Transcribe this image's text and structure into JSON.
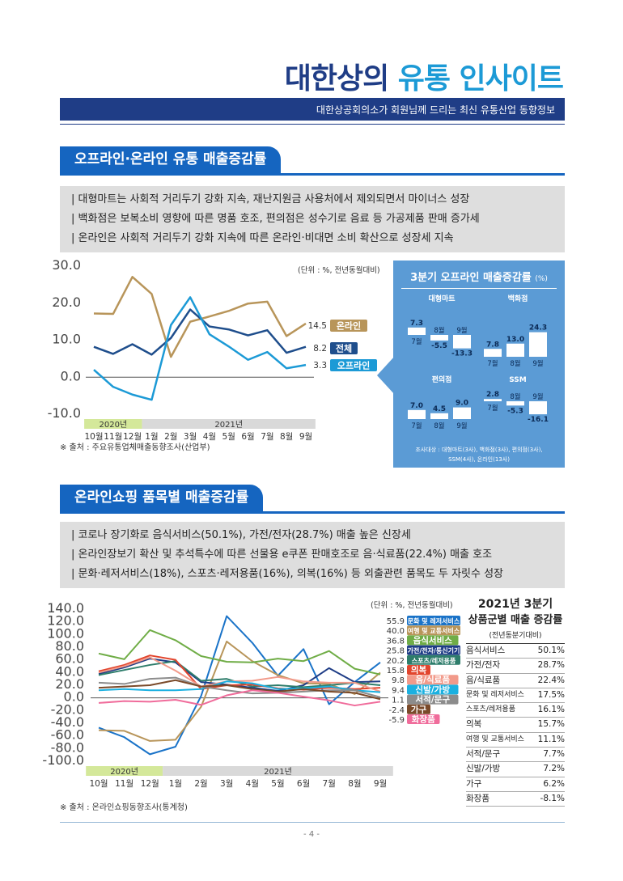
{
  "header": {
    "title_main": "대한상의 ",
    "title_accent": "유통 인사이트",
    "subtitle": "대한상공회의소가 회원님께 드리는 최신 유통산업 동향정보"
  },
  "section1": {
    "title": "오프라인·온라인 유통 매출증감률",
    "bullets": [
      "| 대형마트는 사회적 거리두기 강화 지속, 재난지원금 사용처에서 제외되면서 마이너스 성장",
      "| 백화점은 보복소비 영향에 따른 명품 호조, 편의점은 성수기로 음료 등 가공제품 판매 증가세",
      "| 온라인은 사회적 거리두기 강화 지속에 따른 온라인·비대면 소비 확산으로 성장세 지속"
    ],
    "unit": "(단위 : %, 전년동월대비)",
    "source": "※ 출처 : 주요유통업체매출동향조사(산업부)",
    "panel": {
      "title": "3분기 오프라인 매출증감률",
      "title_unit": "(%)",
      "note_line1": "조사대상 : 대형마트(3사), 백화점(3사), 편의점(3사),",
      "note_line2": "SSM(4사), 온라인(13사)"
    }
  },
  "section2": {
    "title": "온라인쇼핑 품목별 매출증감률",
    "bullets": [
      "| 코로나 장기화로 음식서비스(50.1%), 가전/전자(28.7%) 매출 높은 신장세",
      "| 온라인장보기 확산 및 추석특수에 따른 선물용 e쿠폰 판매호조로 음·식료품(22.4%) 매출 호조",
      "| 문화·레저서비스(18%), 스포츠·레저용품(16%), 의복(16%) 등 외출관련 품목도 두 자릿수 성장"
    ],
    "unit": "(단위 : %, 전년동월대비)",
    "source": "※ 출처 : 온라인쇼핑동향조사(통계청)",
    "table": {
      "title1": "2021년 3분기",
      "title2": "상품군별 매출 증감률",
      "subtitle": "(전년동분기대비)",
      "rows": [
        {
          "name": "음식서비스",
          "value": "50.1%"
        },
        {
          "name": "가전/전자",
          "value": "28.7%"
        },
        {
          "name": "음/식료품",
          "value": "22.4%"
        },
        {
          "name": "문화 및 레저서비스",
          "value": "17.5%"
        },
        {
          "name": "스포츠/레저용품",
          "value": "16.1%"
        },
        {
          "name": "의복",
          "value": "15.7%"
        },
        {
          "name": "여행 및 교통서비스",
          "value": "11.1%"
        },
        {
          "name": "서적/문구",
          "value": "7.7%"
        },
        {
          "name": "신발/가방",
          "value": "7.2%"
        },
        {
          "name": "가구",
          "value": "6.2%"
        },
        {
          "name": "화장품",
          "value": "-8.1%"
        }
      ]
    }
  },
  "footer": {
    "page": "- 4 -"
  },
  "colors": {
    "navy": "#1f3d86",
    "accent": "#1c9ad6",
    "tab_blue": "#1565c0",
    "panel_blue": "#5b9bd5"
  },
  "chart_data": [
    {
      "type": "line",
      "x": [
        "10월",
        "11월",
        "12월",
        "1월",
        "2월",
        "3월",
        "4월",
        "5월",
        "6월",
        "7월",
        "8월",
        "9월"
      ],
      "x_groups": [
        {
          "label": "2020년",
          "span": 3
        },
        {
          "label": "2021년",
          "span": 9
        }
      ],
      "ylim": [
        -10,
        30
      ],
      "y_ticks": [
        "30.0",
        "20.0",
        "10.0",
        "0.0",
        "-10.0"
      ],
      "series": [
        {
          "name": "온라인",
          "color": "#b8955a",
          "end_label": "14.5",
          "values": [
            17.2,
            17.1,
            27.1,
            22.5,
            5.5,
            15.0,
            16.4,
            17.9,
            19.9,
            20.4,
            11.1,
            14.5
          ]
        },
        {
          "name": "전체",
          "color": "#1f4e8c",
          "end_label": "8.2",
          "values": [
            8.2,
            6.3,
            8.9,
            6.1,
            10.6,
            18.3,
            13.7,
            12.9,
            11.3,
            12.7,
            6.6,
            8.2
          ]
        },
        {
          "name": "오프라인",
          "color": "#1c9ad6",
          "end_label": "3.3",
          "values": [
            2.0,
            -2.6,
            -4.7,
            -6.1,
            14.1,
            21.6,
            11.6,
            8.3,
            4.7,
            6.8,
            2.4,
            3.3
          ]
        }
      ]
    },
    {
      "type": "bar",
      "title": "대형마트",
      "categories": [
        "7월",
        "8월",
        "9월"
      ],
      "values": [
        7.3,
        -5.5,
        -13.3
      ],
      "value_labels": [
        "7.3",
        "-5.5",
        "-13.3"
      ]
    },
    {
      "type": "bar",
      "title": "백화점",
      "categories": [
        "7월",
        "8월",
        "9월"
      ],
      "values": [
        7.8,
        13.0,
        24.3
      ],
      "value_labels": [
        "7.8",
        "13.0",
        "24.3"
      ]
    },
    {
      "type": "bar",
      "title": "편의점",
      "categories": [
        "7월",
        "8월",
        "9월"
      ],
      "values": [
        7.0,
        4.5,
        9.0
      ],
      "value_labels": [
        "7.0",
        "4.5",
        "9.0"
      ]
    },
    {
      "type": "bar",
      "title": "SSM",
      "categories": [
        "7월",
        "8월",
        "9월"
      ],
      "values": [
        2.8,
        -5.3,
        -16.1
      ],
      "value_labels": [
        "2.8",
        "-5.3",
        "-16.1"
      ]
    },
    {
      "type": "line",
      "x": [
        "10월",
        "11월",
        "12월",
        "1월",
        "2월",
        "3월",
        "4월",
        "5월",
        "6월",
        "7월",
        "8월",
        "9월"
      ],
      "x_groups": [
        {
          "label": "2020년",
          "span": 3
        },
        {
          "label": "2021년",
          "span": 9
        }
      ],
      "ylim": [
        -100,
        140
      ],
      "y_ticks": [
        "140.0",
        "120.0",
        "100.0",
        "80.0",
        "60.0",
        "40.0",
        "20.0",
        "0.0",
        "-20.0",
        "-40.0",
        "-60.0",
        "-80.0",
        "-100.0"
      ],
      "series": [
        {
          "name": "문화 및 레저서비스",
          "color": "#1a73c8",
          "end_label": "55.9",
          "values": [
            -47,
            -62,
            -89,
            -77,
            3,
            129,
            87,
            35,
            77,
            -10,
            25,
            56
          ]
        },
        {
          "name": "여행 및 교통서비스",
          "color": "#b8955a",
          "end_label": "40.0",
          "values": [
            -51,
            -52,
            -68,
            -66,
            -14,
            89,
            58,
            36,
            23,
            22,
            6,
            40
          ]
        },
        {
          "name": "음식서비스",
          "color": "#70ad47",
          "end_label": "36.8",
          "values": [
            70,
            61,
            107,
            91,
            66,
            57,
            56,
            62,
            58,
            74,
            46,
            37
          ]
        },
        {
          "name": "가전/전자/통신기기",
          "color": "#1f3d86",
          "end_label": "25.8",
          "values": [
            38,
            48,
            62,
            56,
            25,
            21,
            16,
            11,
            20,
            47,
            25,
            26
          ]
        },
        {
          "name": "스포츠/레저용품",
          "color": "#2e7d6b",
          "end_label": "20.2",
          "values": [
            36,
            44,
            52,
            58,
            27,
            30,
            18,
            20,
            17,
            20,
            24,
            20
          ]
        },
        {
          "name": "의복",
          "color": "#e2452d",
          "end_label": "15.8",
          "values": [
            42,
            52,
            67,
            60,
            14,
            20,
            21,
            15,
            13,
            16,
            14,
            16
          ]
        },
        {
          "name": "음/식료품",
          "color": "#f29a8a",
          "end_label": "9.8",
          "values": [
            40,
            50,
            64,
            43,
            18,
            26,
            27,
            33,
            26,
            24,
            24,
            10
          ]
        },
        {
          "name": "신발/가방",
          "color": "#1ab0e0",
          "end_label": "9.4",
          "values": [
            12,
            14,
            12,
            12,
            14,
            26,
            23,
            14,
            15,
            18,
            12,
            9
          ]
        },
        {
          "name": "서적/문구",
          "color": "#8c8c8c",
          "end_label": "1.1",
          "values": [
            24,
            22,
            30,
            32,
            18,
            12,
            7,
            8,
            10,
            12,
            12,
            1
          ]
        },
        {
          "name": "가구",
          "color": "#7a4a2a",
          "end_label": "-2.4",
          "values": [
            16,
            18,
            20,
            28,
            18,
            20,
            14,
            10,
            14,
            10,
            8,
            -2
          ]
        },
        {
          "name": "화장품",
          "color": "#f06c9b",
          "end_label": "-5.9",
          "values": [
            -8,
            -5,
            -6,
            -3,
            -11,
            4,
            12,
            8,
            2,
            -4,
            -12,
            -6
          ]
        }
      ]
    }
  ]
}
